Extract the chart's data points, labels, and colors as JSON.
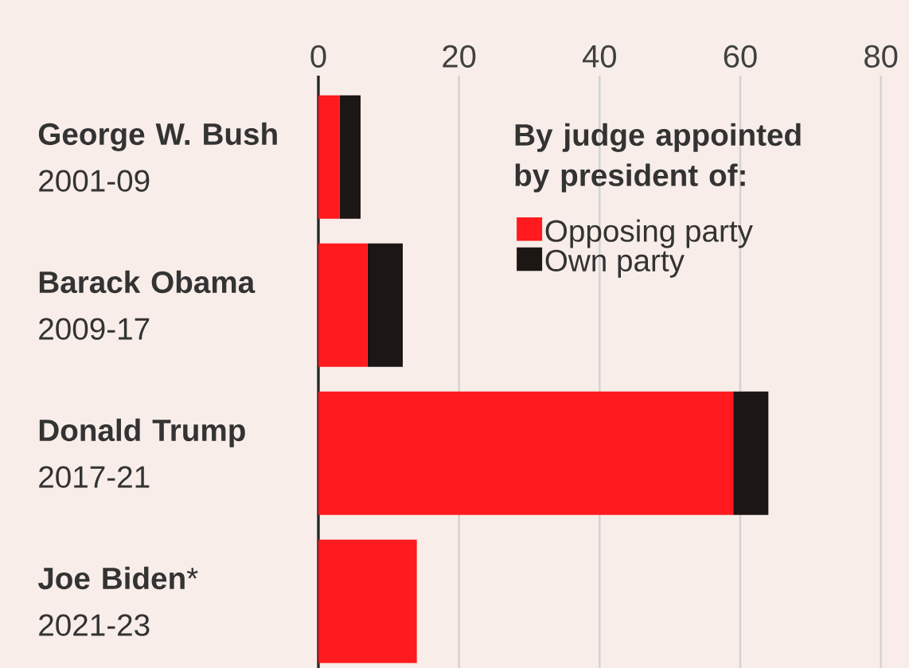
{
  "chart_data": {
    "type": "bar",
    "orientation": "horizontal",
    "stacked": true,
    "categories": [
      "**George W. Bush** 2001-09",
      "**Barack Obama** 2009-17",
      "**Donald Trump** 2017-21",
      "**Joe Biden*** 2021-23"
    ],
    "series": [
      {
        "name": "Opposing party",
        "color": "#fe1a1e",
        "values": [
          3,
          7,
          59,
          14
        ]
      },
      {
        "name": "Own party",
        "color": "#1c1615",
        "values": [
          3,
          5,
          5,
          0
        ]
      }
    ],
    "legend_title": "By judge appointed by president of:",
    "xlim": [
      0,
      84
    ],
    "xticks": [
      0,
      20,
      40,
      60,
      80
    ],
    "grid": "x",
    "legend": "top right"
  }
}
